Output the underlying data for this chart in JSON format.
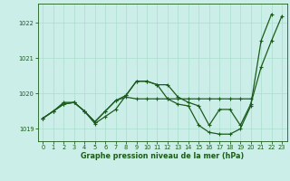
{
  "title": "Graphe pression niveau de la mer (hPa)",
  "background_color": "#cceee8",
  "grid_color": "#aaddcc",
  "line_color": "#1a5c1a",
  "xlim": [
    -0.5,
    23.5
  ],
  "ylim": [
    1018.65,
    1022.55
  ],
  "yticks": [
    1019,
    1020,
    1021,
    1022
  ],
  "xticks": [
    0,
    1,
    2,
    3,
    4,
    5,
    6,
    7,
    8,
    9,
    10,
    11,
    12,
    13,
    14,
    15,
    16,
    17,
    18,
    19,
    20,
    21,
    22,
    23
  ],
  "s1": [
    1019.3,
    1019.5,
    1019.7,
    1019.75,
    1019.5,
    1019.2,
    1019.5,
    1019.8,
    1019.95,
    1020.35,
    1020.35,
    1020.25,
    1020.25,
    1019.9,
    1019.75,
    1019.65,
    1019.1,
    1019.55,
    1019.55,
    1019.1,
    1019.7,
    1020.75,
    1021.5,
    1022.2
  ],
  "s2": [
    1019.3,
    1019.5,
    1019.7,
    1019.75,
    1019.5,
    1019.15,
    1019.35,
    1019.55,
    1019.95,
    1020.35,
    1020.35,
    1020.25,
    1019.85,
    1019.7,
    1019.65,
    1019.1,
    1018.9,
    1018.85,
    1018.85,
    1019.0,
    1019.65,
    1021.5,
    1022.25,
    null
  ],
  "s3": [
    1019.3,
    1019.5,
    1019.75,
    1019.75,
    1019.5,
    1019.2,
    1019.5,
    1019.8,
    1019.9,
    1019.85,
    1019.85,
    1019.85,
    1019.85,
    1019.85,
    1019.85,
    1019.85,
    1019.85,
    1019.85,
    1019.85,
    1019.85,
    1019.85,
    null,
    null,
    null
  ],
  "xlabel_fontsize": 5.8,
  "tick_fontsize": 4.8,
  "linewidth": 0.9,
  "markersize": 3.0
}
